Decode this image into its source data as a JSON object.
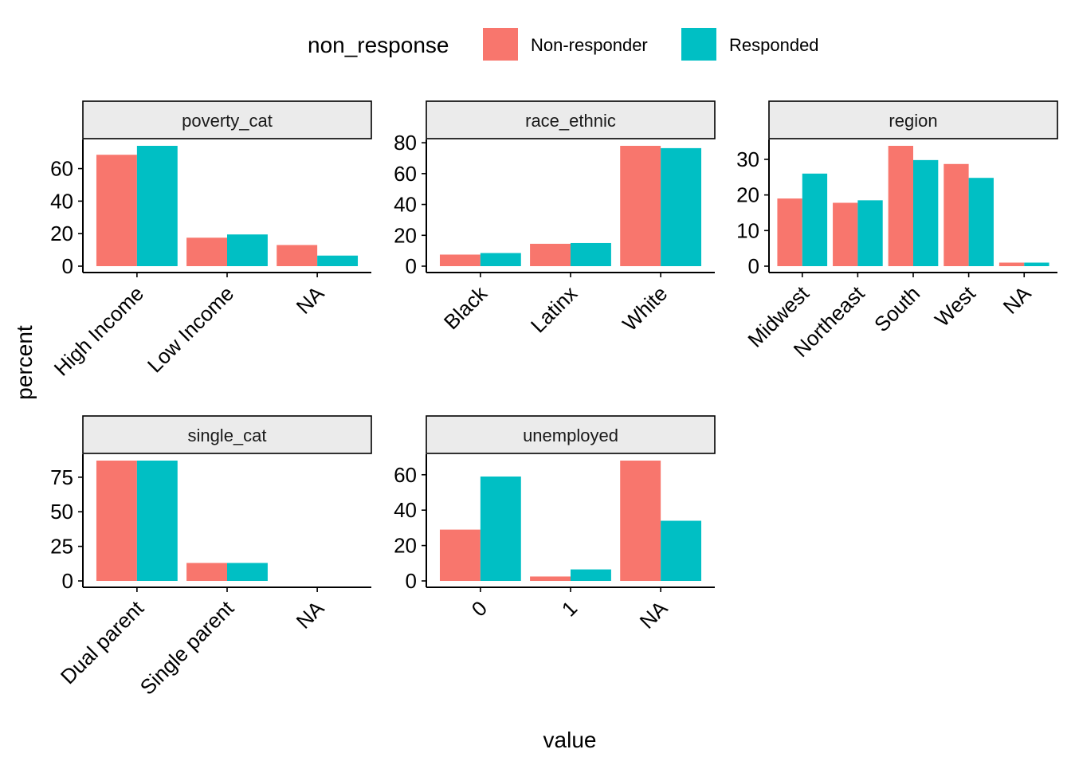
{
  "chart_data": {
    "type": "bar",
    "xlabel": "value",
    "ylabel": "percent",
    "legend": {
      "title": "non_response",
      "position": "top",
      "entries": [
        {
          "name": "Non-responder",
          "color": "#F8766D"
        },
        {
          "name": "Responded",
          "color": "#00BFC4"
        }
      ]
    },
    "grid": false,
    "facets": [
      {
        "title": "poverty_cat",
        "categories": [
          "High Income",
          "Low Income",
          "NA"
        ],
        "ylim": [
          0,
          74
        ],
        "yticks": [
          0,
          20,
          40,
          60
        ],
        "series": [
          {
            "name": "Non-responder",
            "values": [
              68.5,
              17.5,
              13
            ]
          },
          {
            "name": "Responded",
            "values": [
              74,
              19.5,
              6.5
            ]
          }
        ]
      },
      {
        "title": "race_ethnic",
        "categories": [
          "Black",
          "Latinx",
          "White"
        ],
        "ylim": [
          0,
          78
        ],
        "yticks": [
          0,
          20,
          40,
          60,
          80
        ],
        "series": [
          {
            "name": "Non-responder",
            "values": [
              7.5,
              14.5,
              78
            ]
          },
          {
            "name": "Responded",
            "values": [
              8.5,
              15,
              76.5
            ]
          }
        ]
      },
      {
        "title": "region",
        "categories": [
          "Midwest",
          "Northeast",
          "South",
          "West",
          "NA"
        ],
        "ylim": [
          0,
          33.8
        ],
        "yticks": [
          0,
          10,
          20,
          30
        ],
        "series": [
          {
            "name": "Non-responder",
            "values": [
              19,
              17.8,
              33.8,
              28.7,
              1
            ]
          },
          {
            "name": "Responded",
            "values": [
              26,
              18.5,
              29.8,
              24.8,
              1
            ]
          }
        ]
      },
      {
        "title": "single_cat",
        "categories": [
          "Dual parent",
          "Single parent",
          "NA"
        ],
        "ylim": [
          0,
          87
        ],
        "yticks": [
          0,
          25,
          50,
          75
        ],
        "series": [
          {
            "name": "Non-responder",
            "values": [
              87,
              13,
              0
            ]
          },
          {
            "name": "Responded",
            "values": [
              87,
              13,
              0
            ]
          }
        ]
      },
      {
        "title": "unemployed",
        "categories": [
          "0",
          "1",
          "NA"
        ],
        "ylim": [
          0,
          68
        ],
        "yticks": [
          0,
          20,
          40,
          60
        ],
        "series": [
          {
            "name": "Non-responder",
            "values": [
              29,
              2.5,
              68
            ]
          },
          {
            "name": "Responded",
            "values": [
              59,
              6.5,
              34
            ]
          }
        ]
      }
    ]
  }
}
